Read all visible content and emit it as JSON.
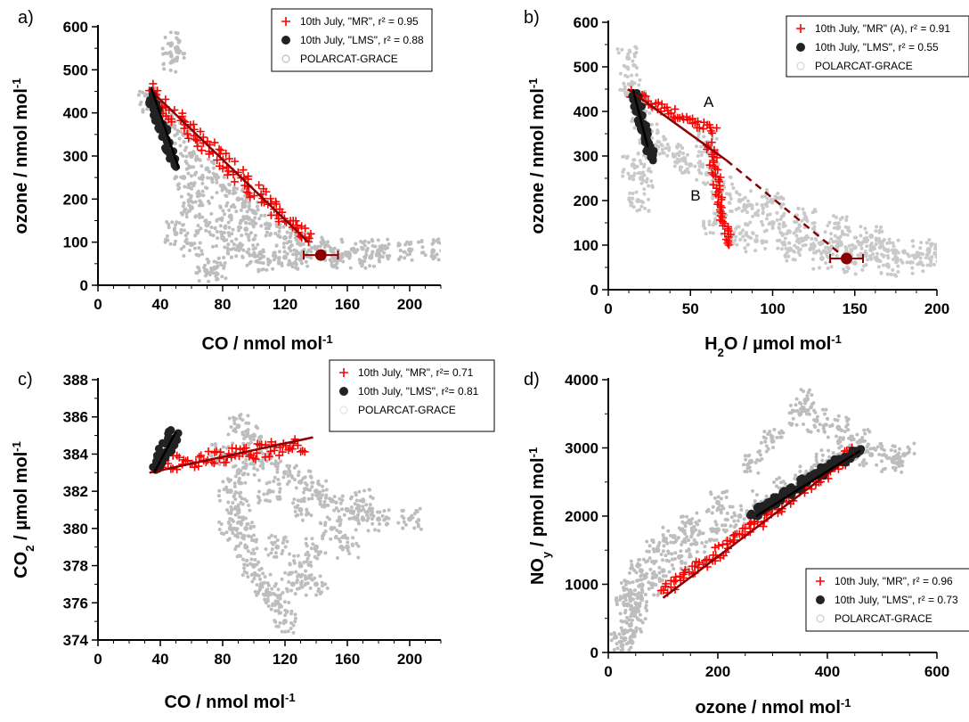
{
  "chart_data": [
    {
      "panel": "a)",
      "type": "scatter",
      "xlabel": "CO / nmol mol",
      "xlabel_sup": "-1",
      "ylabel": "ozone / nmol mol",
      "ylabel_sup": "-1",
      "xlim": [
        0,
        220
      ],
      "ylim": [
        0,
        600
      ],
      "xticks": [
        0,
        40,
        80,
        120,
        160,
        200
      ],
      "yticks": [
        0,
        100,
        200,
        300,
        400,
        500,
        600
      ],
      "legend_position": "top-right",
      "legend": [
        {
          "label": "10th July, \"MR\", r² = 0.95",
          "marker": "cross",
          "color": "#ff0000"
        },
        {
          "label": "10th July, \"LMS\",  r² = 0.88",
          "marker": "filled-circle",
          "color": "#222222"
        },
        {
          "label": "POLARCAT-GRACE",
          "marker": "open-circle",
          "color": "#b0b0b0"
        }
      ],
      "series": [
        {
          "name": "POLARCAT-GRACE",
          "style": "cloud",
          "color": "#a8a8a8",
          "points": [
            [
              32,
              440
            ],
            [
              36,
              410
            ],
            [
              45,
              390
            ],
            [
              55,
              350
            ],
            [
              60,
              300
            ],
            [
              70,
              270
            ],
            [
              80,
              230
            ],
            [
              90,
              200
            ],
            [
              100,
              170
            ],
            [
              110,
              140
            ],
            [
              120,
              110
            ],
            [
              130,
              95
            ],
            [
              140,
              85
            ],
            [
              150,
              80
            ],
            [
              165,
              78
            ],
            [
              180,
              80
            ],
            [
              200,
              82
            ],
            [
              215,
              80
            ],
            [
              60,
              180
            ],
            [
              70,
              140
            ],
            [
              80,
              110
            ],
            [
              90,
              90
            ],
            [
              100,
              70
            ],
            [
              110,
              55
            ],
            [
              75,
              40
            ],
            [
              70,
              30
            ],
            [
              85,
              160
            ],
            [
              95,
              130
            ],
            [
              65,
              210
            ],
            [
              55,
              250
            ],
            [
              48,
              520
            ],
            [
              47,
              560
            ],
            [
              120,
              65
            ],
            [
              130,
              60
            ],
            [
              155,
              60
            ],
            [
              175,
              65
            ],
            [
              60,
              95
            ],
            [
              50,
              120
            ]
          ]
        },
        {
          "name": "10th July, \"MR\"",
          "style": "band",
          "color": "#ff0000",
          "x0": 32,
          "y0": 455,
          "x1": 135,
          "y1": 100,
          "width": 18
        },
        {
          "name": "10th July, \"LMS\"",
          "style": "band",
          "color": "#222222",
          "x0": 34,
          "y0": 440,
          "x1": 50,
          "y1": 275,
          "width": 10
        }
      ],
      "fits": [
        {
          "x0": 33,
          "y0": 455,
          "x1": 135,
          "y1": 100,
          "color": "#8b0000",
          "dashed": false
        },
        {
          "x0": 34,
          "y0": 460,
          "x1": 52,
          "y1": 270,
          "color": "#000000",
          "dashed": false
        }
      ],
      "errorbar": {
        "x": 143,
        "y": 70,
        "xerr": 11,
        "color": "#8b0000"
      },
      "annotations": []
    },
    {
      "panel": "b)",
      "type": "scatter",
      "xlabel": "H",
      "xlabel_sub": "2",
      "xlabel_rest": "O / µmol mol",
      "xlabel_sup": "-1",
      "ylabel": "ozone / nmol mol",
      "ylabel_sup": "-1",
      "xlim": [
        0,
        200
      ],
      "ylim": [
        0,
        600
      ],
      "xticks": [
        0,
        50,
        100,
        150,
        200
      ],
      "yticks": [
        0,
        100,
        200,
        300,
        400,
        500,
        600
      ],
      "legend_position": "top-right",
      "legend": [
        {
          "label": "10th July, \"MR\" (A), r² = 0.91",
          "marker": "cross",
          "color": "#ff0000"
        },
        {
          "label": "10th July, \"LMS\", r² = 0.55",
          "marker": "filled-circle",
          "color": "#222222"
        },
        {
          "label": "POLARCAT-GRACE",
          "marker": "open-circle",
          "color": "#cccccc"
        }
      ],
      "series": [
        {
          "name": "POLARCAT-GRACE",
          "style": "cloud",
          "color": "#b8b8b8",
          "points": [
            [
              12,
              520
            ],
            [
              14,
              460
            ],
            [
              16,
              420
            ],
            [
              20,
              380
            ],
            [
              25,
              350
            ],
            [
              30,
              320
            ],
            [
              40,
              300
            ],
            [
              50,
              280
            ],
            [
              60,
              260
            ],
            [
              70,
              230
            ],
            [
              80,
              200
            ],
            [
              90,
              170
            ],
            [
              100,
              150
            ],
            [
              110,
              130
            ],
            [
              120,
              115
            ],
            [
              130,
              105
            ],
            [
              140,
              100
            ],
            [
              150,
              95
            ],
            [
              160,
              90
            ],
            [
              170,
              88
            ],
            [
              180,
              85
            ],
            [
              195,
              90
            ],
            [
              200,
              80
            ],
            [
              65,
              150
            ],
            [
              75,
              120
            ],
            [
              90,
              110
            ],
            [
              110,
              90
            ],
            [
              130,
              70
            ],
            [
              150,
              60
            ],
            [
              170,
              55
            ],
            [
              190,
              60
            ],
            [
              100,
              200
            ],
            [
              120,
              160
            ],
            [
              140,
              140
            ],
            [
              160,
              120
            ],
            [
              18,
              200
            ],
            [
              15,
              280
            ],
            [
              20,
              250
            ],
            [
              60,
              330
            ]
          ]
        },
        {
          "name": "10th July, \"MR\" (A)",
          "style": "band",
          "color": "#ff0000",
          "x0": 13,
          "y0": 440,
          "x1": 65,
          "y1": 355,
          "width": 10
        },
        {
          "name": "10th July, \"MR\" (B)",
          "style": "band",
          "color": "#ff0000",
          "x0": 62,
          "y0": 330,
          "x1": 73,
          "y1": 100,
          "width": 10
        },
        {
          "name": "10th July, \"LMS\"",
          "style": "band",
          "color": "#222222",
          "x0": 16,
          "y0": 440,
          "x1": 27,
          "y1": 290,
          "width": 9
        }
      ],
      "fits": [
        {
          "x0": 12,
          "y0": 450,
          "x1": 72,
          "y1": 290,
          "color": "#8b0000",
          "dashed": false
        },
        {
          "x0": 72,
          "y0": 290,
          "x1": 143,
          "y1": 75,
          "color": "#8b0000",
          "dashed": true
        },
        {
          "x0": 15,
          "y0": 450,
          "x1": 24,
          "y1": 320,
          "color": "#000000",
          "dashed": false
        }
      ],
      "errorbar": {
        "x": 145,
        "y": 70,
        "xerr": 10,
        "color": "#8b0000"
      },
      "annotations": [
        {
          "text": "A",
          "x": 58,
          "y": 410
        },
        {
          "text": "B",
          "x": 50,
          "y": 200
        }
      ]
    },
    {
      "panel": "c)",
      "type": "scatter",
      "xlabel": "CO / nmol mol",
      "xlabel_sup": "-1",
      "ylabel": "CO",
      "ylabel_sub": "2",
      "ylabel_rest": " / µmol mol",
      "ylabel_sup": "-1",
      "xlim": [
        0,
        220
      ],
      "ylim": [
        374,
        388
      ],
      "xticks": [
        0,
        40,
        80,
        120,
        160,
        200
      ],
      "yticks": [
        374,
        376,
        378,
        380,
        382,
        384,
        386,
        388
      ],
      "legend_position": "top-right",
      "legend": [
        {
          "label": "10th July, \"MR\", r²= 0.71",
          "marker": "cross",
          "color": "#ff0000"
        },
        {
          "label": "10th July, \"LMS\", r²= 0.81",
          "marker": "filled-circle",
          "color": "#222222"
        },
        {
          "label": "POLARCAT-GRACE",
          "marker": "open-circle",
          "color": "#dddddd"
        }
      ],
      "series": [
        {
          "name": "POLARCAT-GRACE",
          "style": "cloud",
          "color": "#a8a8a8",
          "points": [
            [
              80,
              384
            ],
            [
              90,
              385.5
            ],
            [
              100,
              385
            ],
            [
              110,
              384
            ],
            [
              120,
              383
            ],
            [
              130,
              382.5
            ],
            [
              140,
              382
            ],
            [
              150,
              381.5
            ],
            [
              160,
              381
            ],
            [
              170,
              380.5
            ],
            [
              180,
              380.5
            ],
            [
              200,
              380.5
            ],
            [
              85,
              382
            ],
            [
              90,
              381
            ],
            [
              95,
              380
            ],
            [
              95,
              379
            ],
            [
              100,
              378
            ],
            [
              105,
              377
            ],
            [
              110,
              376.5
            ],
            [
              115,
              376
            ],
            [
              120,
              375
            ],
            [
              125,
              377
            ],
            [
              130,
              378
            ],
            [
              140,
              379
            ],
            [
              150,
              380
            ],
            [
              160,
              379
            ],
            [
              90,
              383
            ],
            [
              110,
              382
            ],
            [
              130,
              381
            ],
            [
              85,
              380
            ],
            [
              100,
              383.5
            ],
            [
              115,
              379
            ],
            [
              140,
              377
            ],
            [
              170,
              381.5
            ]
          ]
        },
        {
          "name": "10th July, \"MR\"",
          "style": "band",
          "color": "#ff0000",
          "x0": 40,
          "y0": 383.4,
          "x1": 132,
          "y1": 384.5,
          "width": 18
        },
        {
          "name": "10th July, \"LMS\"",
          "style": "band",
          "color": "#222222",
          "x0": 36,
          "y0": 383.2,
          "x1": 50,
          "y1": 385.2,
          "width": 14
        }
      ],
      "fits": [
        {
          "x0": 33,
          "y0": 383.0,
          "x1": 138,
          "y1": 384.9,
          "color": "#8b0000",
          "dashed": false
        },
        {
          "x0": 36,
          "y0": 383.0,
          "x1": 50,
          "y1": 385.2,
          "color": "#000000",
          "dashed": false
        }
      ],
      "errorbar": null,
      "annotations": []
    },
    {
      "panel": "d)",
      "type": "scatter",
      "xlabel": "ozone / nmol mol",
      "xlabel_sup": "-1",
      "ylabel": "NO",
      "ylabel_sub": "y",
      "ylabel_rest": " / pmol mol",
      "ylabel_sup": "-1",
      "xlim": [
        0,
        600
      ],
      "ylim": [
        0,
        4000
      ],
      "xticks": [
        0,
        200,
        400,
        600
      ],
      "yticks": [
        0,
        1000,
        2000,
        3000,
        4000
      ],
      "legend_position": "bottom-right",
      "legend": [
        {
          "label": "10th July, \"MR\", r² = 0.96",
          "marker": "cross",
          "color": "#ff0000"
        },
        {
          "label": "10th July, \"LMS\", r² = 0.73",
          "marker": "filled-circle",
          "color": "#222222"
        },
        {
          "label": "POLARCAT-GRACE",
          "marker": "open-circle",
          "color": "#c0c0c0"
        }
      ],
      "series": [
        {
          "name": "POLARCAT-GRACE",
          "style": "cloud",
          "color": "#a8a8a8",
          "points": [
            [
              25,
              100
            ],
            [
              30,
              200
            ],
            [
              40,
              400
            ],
            [
              50,
              600
            ],
            [
              60,
              800
            ],
            [
              80,
              1000
            ],
            [
              100,
              1200
            ],
            [
              130,
              1400
            ],
            [
              160,
              1600
            ],
            [
              200,
              1800
            ],
            [
              240,
              2000
            ],
            [
              280,
              2200
            ],
            [
              320,
              2400
            ],
            [
              360,
              2600
            ],
            [
              400,
              2800
            ],
            [
              440,
              3000
            ],
            [
              480,
              2900
            ],
            [
              520,
              2800
            ],
            [
              540,
              2900
            ],
            [
              380,
              3400
            ],
            [
              360,
              3700
            ],
            [
              350,
              3500
            ],
            [
              300,
              3100
            ],
            [
              260,
              2800
            ],
            [
              200,
              2200
            ],
            [
              150,
              1900
            ],
            [
              120,
              1700
            ],
            [
              90,
              1500
            ],
            [
              60,
              1200
            ],
            [
              40,
              900
            ],
            [
              35,
              700
            ],
            [
              420,
              3300
            ],
            [
              460,
              3100
            ]
          ]
        },
        {
          "name": "10th July, \"MR\"",
          "style": "band",
          "color": "#ff0000",
          "x0": 100,
          "y0": 870,
          "x1": 450,
          "y1": 2950,
          "width": 14
        },
        {
          "name": "10th July, \"LMS\"",
          "style": "band",
          "color": "#222222",
          "x0": 260,
          "y0": 2000,
          "x1": 460,
          "y1": 3000,
          "width": 12
        }
      ],
      "fits": [
        {
          "x0": 100,
          "y0": 800,
          "x1": 455,
          "y1": 2950,
          "color": "#8b0000",
          "dashed": false
        },
        {
          "x0": 270,
          "y0": 2000,
          "x1": 460,
          "y1": 2960,
          "color": "#000000",
          "dashed": false
        }
      ],
      "errorbar": null,
      "annotations": []
    }
  ]
}
